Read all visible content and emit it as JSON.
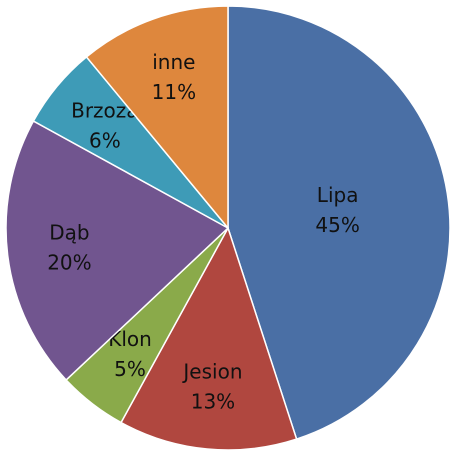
{
  "chart_data": {
    "type": "pie",
    "categories": [
      "Lipa",
      "Jesion",
      "Klon",
      "Dąb",
      "Brzoza",
      "inne"
    ],
    "values": [
      45,
      13,
      5,
      20,
      6,
      11
    ],
    "value_labels": [
      "45%",
      "13%",
      "5%",
      "20%",
      "6%",
      "11%"
    ],
    "colors": [
      "#4a6fa5",
      "#b0473f",
      "#8aaa4a",
      "#71558f",
      "#3e9bb7",
      "#de873d"
    ]
  }
}
